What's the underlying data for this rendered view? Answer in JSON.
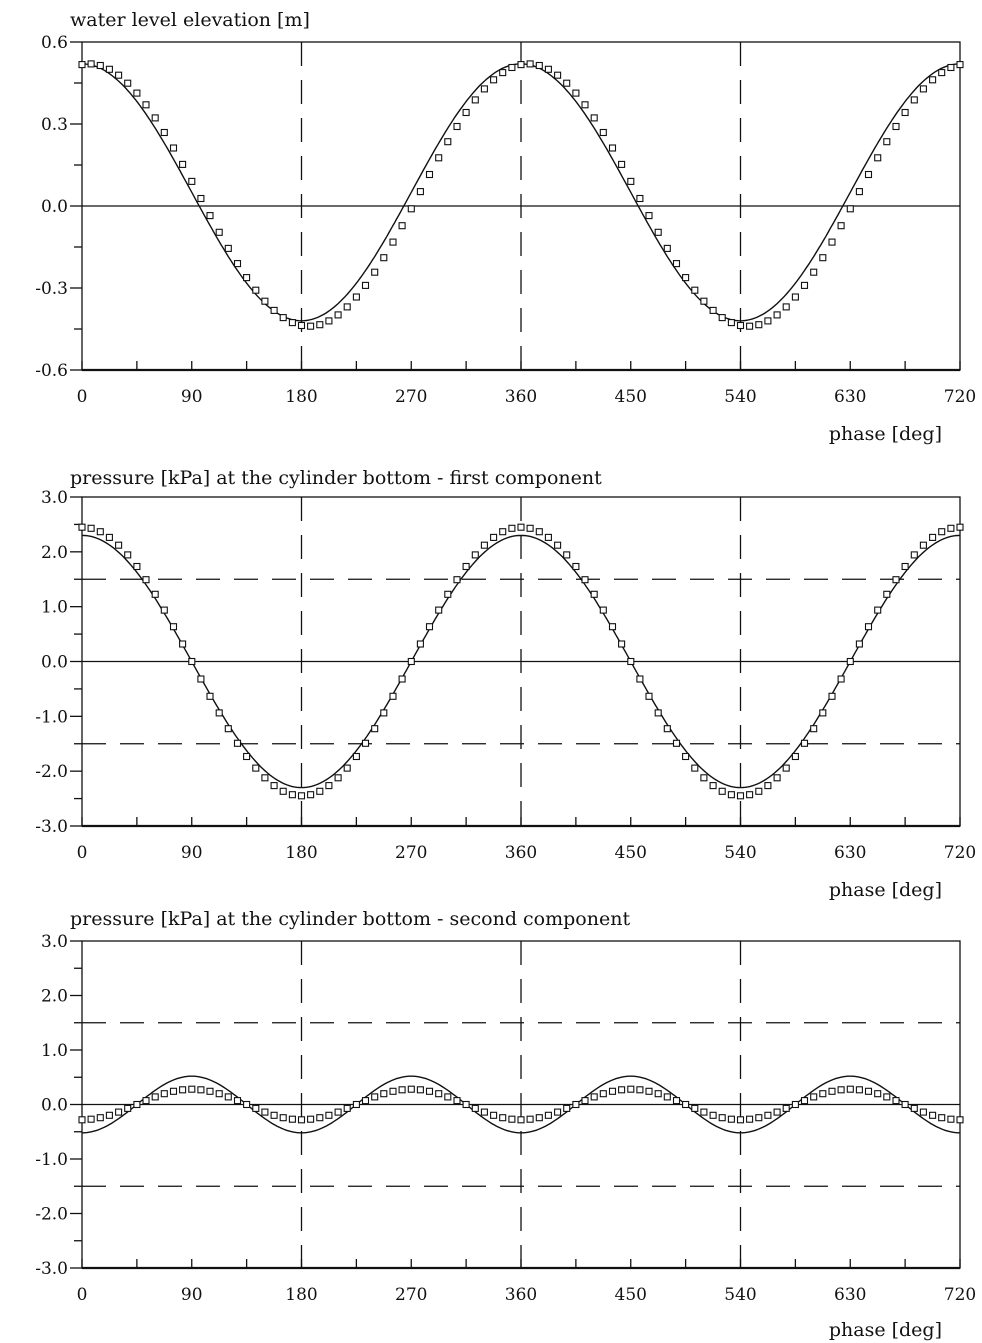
{
  "chart_data": [
    {
      "type": "line",
      "title": "water level elevation [m]",
      "xlabel": "phase [deg]",
      "ylabel": "",
      "xlim": [
        0,
        720
      ],
      "ylim": [
        -0.6,
        0.6
      ],
      "x_ticks": [
        0,
        90,
        180,
        270,
        360,
        450,
        540,
        630,
        720
      ],
      "x_tick_labels": [
        "0",
        "90",
        "180",
        "270",
        "360",
        "450",
        "540",
        "630",
        "720"
      ],
      "y_ticks": [
        0.6,
        0.3,
        0.0,
        -0.3,
        -0.6
      ],
      "y_tick_labels": [
        "0.6",
        "0.3",
        "0.0",
        "-0.3",
        "-0.6"
      ],
      "vertical_dashed_lines": [
        180,
        360,
        540
      ],
      "horizontal_dashed_lines": [],
      "series": [
        {
          "style": "solid-line",
          "function": "cosine",
          "mean": 0.05,
          "amplitude": 0.47,
          "cycles_per_360": 1,
          "phase_deg": 0
        },
        {
          "style": "square-markers",
          "function": "cosine",
          "mean": 0.04,
          "amplitude": 0.48,
          "cycles_per_360": 1,
          "phase_deg": -6,
          "marker_step_deg": 7.5
        }
      ]
    },
    {
      "type": "line",
      "title": "pressure [kPa] at the cylinder bottom - first component",
      "xlabel": "phase [deg]",
      "ylabel": "",
      "xlim": [
        0,
        720
      ],
      "ylim": [
        -3.0,
        3.0
      ],
      "x_ticks": [
        0,
        90,
        180,
        270,
        360,
        450,
        540,
        630,
        720
      ],
      "x_tick_labels": [
        "0",
        "90",
        "180",
        "270",
        "360",
        "450",
        "540",
        "630",
        "720"
      ],
      "y_ticks": [
        3.0,
        2.0,
        1.0,
        0.0,
        -1.0,
        -2.0,
        -3.0
      ],
      "y_tick_labels": [
        "3.0",
        "2.0",
        "1.0",
        "0.0",
        "-1.0",
        "-2.0",
        "-3.0"
      ],
      "vertical_dashed_lines": [
        180,
        360,
        540
      ],
      "horizontal_dashed_lines": [
        1.5,
        -1.5
      ],
      "series": [
        {
          "style": "solid-line",
          "function": "cosine",
          "mean": 0.0,
          "amplitude": 2.3,
          "cycles_per_360": 1,
          "phase_deg": 0
        },
        {
          "style": "square-markers",
          "function": "cosine",
          "mean": 0.0,
          "amplitude": 2.45,
          "cycles_per_360": 1,
          "phase_deg": 0,
          "marker_step_deg": 7.5
        }
      ]
    },
    {
      "type": "line",
      "title": "pressure [kPa] at the cylinder bottom - second component",
      "xlabel": "phase [deg]",
      "ylabel": "",
      "xlim": [
        0,
        720
      ],
      "ylim": [
        -3.0,
        3.0
      ],
      "x_ticks": [
        0,
        90,
        180,
        270,
        360,
        450,
        540,
        630,
        720
      ],
      "x_tick_labels": [
        "0",
        "90",
        "180",
        "270",
        "360",
        "450",
        "540",
        "630",
        "720"
      ],
      "y_ticks": [
        3.0,
        2.0,
        1.0,
        0.0,
        -1.0,
        -2.0,
        -3.0
      ],
      "y_tick_labels": [
        "3.0",
        "2.0",
        "1.0",
        "0.0",
        "-1.0",
        "-2.0",
        "-3.0"
      ],
      "vertical_dashed_lines": [
        180,
        360,
        540
      ],
      "horizontal_dashed_lines": [
        1.5,
        -1.5
      ],
      "series": [
        {
          "style": "solid-line",
          "function": "cosine",
          "mean": 0.0,
          "amplitude": 0.52,
          "cycles_per_360": 2,
          "phase_deg": 180
        },
        {
          "style": "square-markers",
          "function": "cosine",
          "mean": 0.0,
          "amplitude": 0.28,
          "cycles_per_360": 2,
          "phase_deg": 180,
          "marker_step_deg": 7.5
        }
      ]
    }
  ]
}
